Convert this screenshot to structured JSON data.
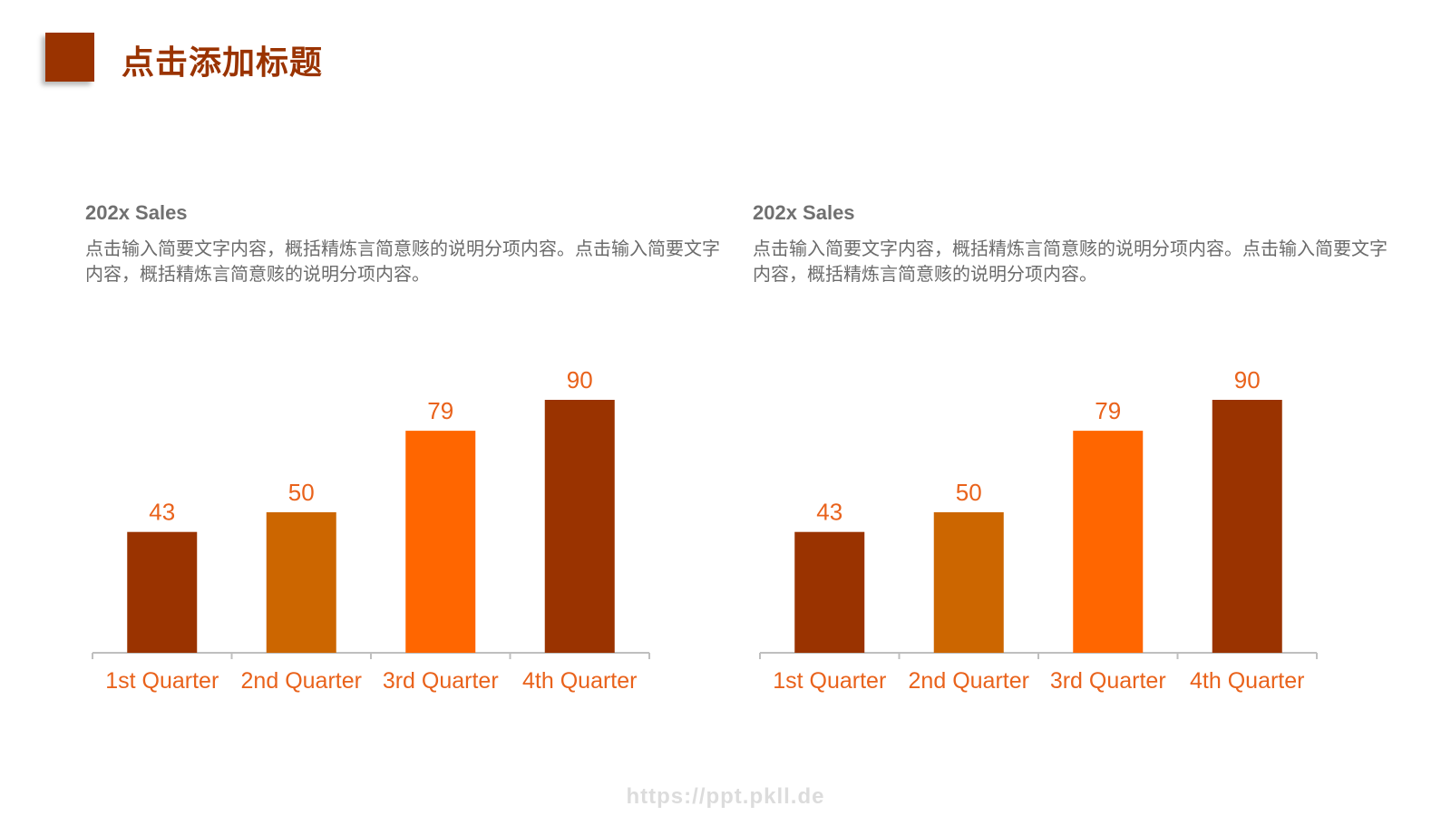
{
  "page": {
    "title": "点击添加标题",
    "watermark": "https://ppt.pkll.de"
  },
  "colors": {
    "accent": "#9a3300",
    "orange": "#ff6600",
    "mid_orange": "#cc6600",
    "label": "#e9621b",
    "axis": "#bfbfbf",
    "heading": "#707070",
    "text": "#6b6b6b"
  },
  "panels": [
    {
      "heading": "202x Sales",
      "description": "点击输入简要文字内容，概括精炼言简意赅的说明分项内容。点击输入简要文字内容，概括精炼言简意赅的说明分项内容。"
    },
    {
      "heading": "202x Sales",
      "description": "点击输入简要文字内容，概括精炼言简意赅的说明分项内容。点击输入简要文字内容，概括精炼言简意赅的说明分项内容。"
    }
  ],
  "chart_data": [
    {
      "type": "bar",
      "categories": [
        "1st Quarter",
        "2nd Quarter",
        "3rd Quarter",
        "4th Quarter"
      ],
      "values": [
        43,
        50,
        79,
        90
      ],
      "bar_colors": [
        "#9a3300",
        "#cc6600",
        "#ff6600",
        "#9a3300"
      ],
      "title": "202x Sales",
      "xlabel": "",
      "ylabel": "",
      "ylim": [
        0,
        100
      ],
      "data_labels": true,
      "grid": false,
      "legend": "none"
    },
    {
      "type": "bar",
      "categories": [
        "1st Quarter",
        "2nd Quarter",
        "3rd Quarter",
        "4th Quarter"
      ],
      "values": [
        43,
        50,
        79,
        90
      ],
      "bar_colors": [
        "#9a3300",
        "#cc6600",
        "#ff6600",
        "#9a3300"
      ],
      "title": "202x Sales",
      "xlabel": "",
      "ylabel": "",
      "ylim": [
        0,
        100
      ],
      "data_labels": true,
      "grid": false,
      "legend": "none"
    }
  ]
}
